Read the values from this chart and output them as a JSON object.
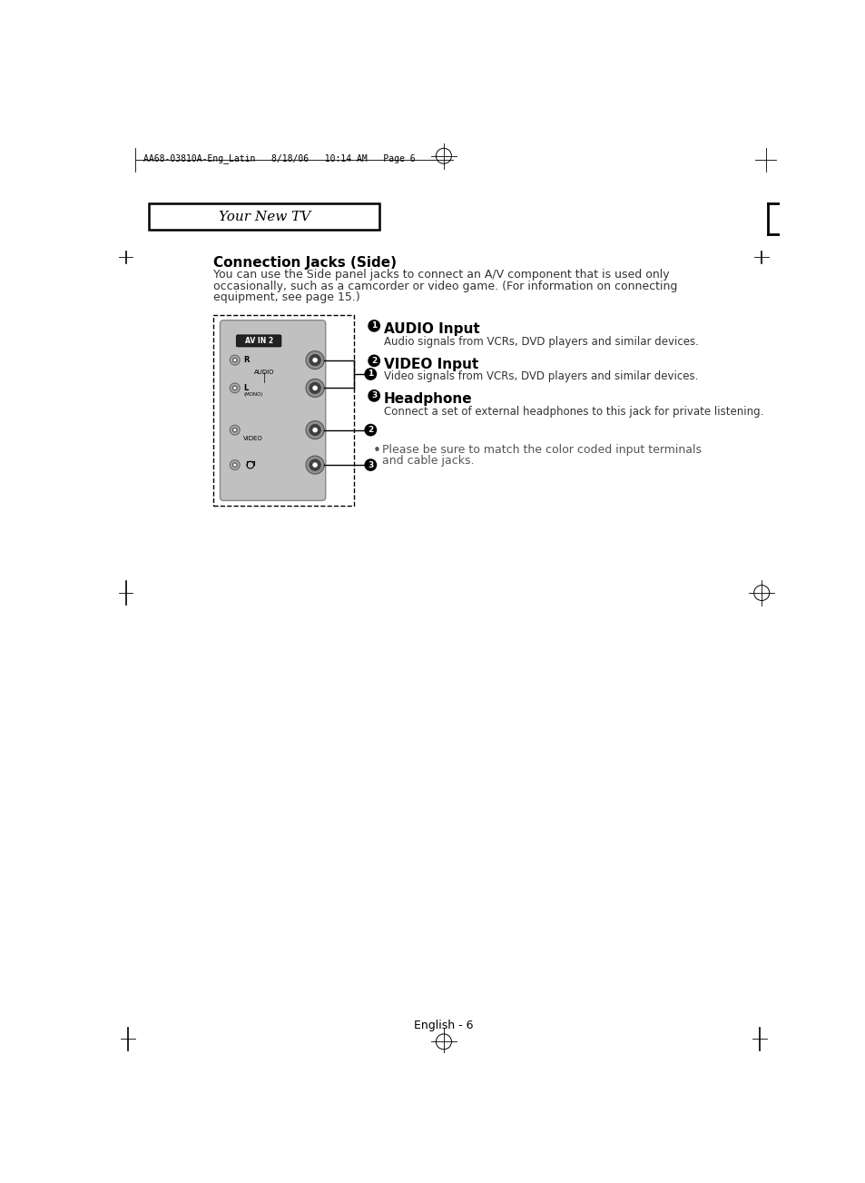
{
  "bg_color": "#ffffff",
  "page_header_text": "AA68-03810A-Eng_Latin   8/18/06   10:14 AM   Page 6",
  "section_title_box_text": "Your New TV",
  "section_heading": "Connection Jacks (Side)",
  "intro_line1": "You can use the Side panel jacks to connect an A/V component that is used only",
  "intro_line2": "occasionally, such as a camcorder or video game. (For information on connecting",
  "intro_line3": "equipment, see page 15.)",
  "item1_title": "AUDIO Input",
  "item1_desc": "Audio signals from VCRs, DVD players and similar devices.",
  "item2_title": "VIDEO Input",
  "item2_desc": "Video signals from VCRs, DVD players and similar devices.",
  "item3_title": "Headphone",
  "item3_desc": "Connect a set of external headphones to this jack for private listening.",
  "bullet_line1": "Please be sure to match the color coded input terminals",
  "bullet_line2": "and cable jacks.",
  "footer_text": "English - 6",
  "avin_label": "AV IN 2",
  "audio_label": "AUDIO",
  "mono_label": "(MONO)",
  "video_label": "VIDEO",
  "r_label": "R",
  "l_label": "L",
  "panel_gray": "#c0c0c0",
  "panel_dark": "#a0a0a0",
  "jack_outer": "#909090",
  "jack_mid": "#404040",
  "jack_white": "#ffffff",
  "black": "#000000",
  "dark_text": "#333333",
  "mid_text": "#555555"
}
